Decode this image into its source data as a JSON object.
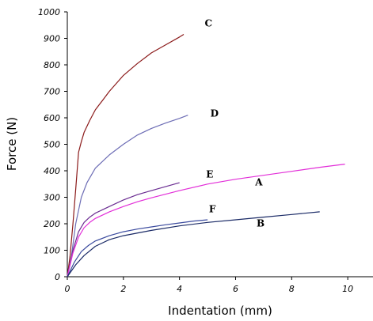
{
  "chart_data": {
    "type": "line",
    "title": "",
    "xlabel": "Indentation (mm)",
    "ylabel": "Force (N)",
    "xlim": [
      0,
      10.9
    ],
    "ylim": [
      0,
      1000
    ],
    "x_ticks": [
      0,
      2,
      4,
      6,
      8,
      10
    ],
    "y_ticks": [
      0,
      100,
      200,
      300,
      400,
      500,
      600,
      700,
      800,
      900,
      1000
    ],
    "grid": false,
    "legend": "none",
    "series": [
      {
        "name": "C",
        "color": "#8b1a1a",
        "x": [
          0,
          0.1,
          0.2,
          0.3,
          0.4,
          0.5,
          0.6,
          0.8,
          1.0,
          1.25,
          1.5,
          2.0,
          2.5,
          3.0,
          3.5,
          4.0,
          4.15
        ],
        "y": [
          0,
          80,
          200,
          330,
          470,
          510,
          545,
          590,
          630,
          665,
          700,
          760,
          805,
          845,
          875,
          905,
          915
        ]
      },
      {
        "name": "D",
        "color": "#6d6db5",
        "x": [
          0,
          0.15,
          0.3,
          0.5,
          0.7,
          1.0,
          1.5,
          2.0,
          2.5,
          3.0,
          3.5,
          4.0,
          4.3
        ],
        "y": [
          0,
          80,
          200,
          300,
          355,
          410,
          460,
          500,
          535,
          560,
          580,
          598,
          610
        ]
      },
      {
        "name": "E",
        "color": "#6a2c91",
        "x": [
          0,
          0.2,
          0.4,
          0.6,
          0.8,
          1.0,
          1.5,
          2.0,
          2.5,
          3.0,
          3.5,
          4.0
        ],
        "y": [
          0,
          100,
          170,
          205,
          225,
          240,
          265,
          290,
          310,
          325,
          340,
          355
        ]
      },
      {
        "name": "A",
        "color": "#e22ed8",
        "x": [
          0,
          0.2,
          0.4,
          0.6,
          0.8,
          1.0,
          1.5,
          2.0,
          2.5,
          3.0,
          4.0,
          5.0,
          6.0,
          7.0,
          8.0,
          9.0,
          9.9
        ],
        "y": [
          0,
          90,
          150,
          185,
          205,
          220,
          245,
          265,
          283,
          298,
          325,
          350,
          368,
          383,
          398,
          413,
          425
        ]
      },
      {
        "name": "F",
        "color": "#3a4a9e",
        "x": [
          0,
          0.25,
          0.5,
          0.75,
          1.0,
          1.5,
          2.0,
          2.5,
          3.0,
          3.5,
          4.0,
          4.5,
          5.0
        ],
        "y": [
          0,
          55,
          95,
          118,
          135,
          155,
          170,
          180,
          188,
          196,
          203,
          210,
          215
        ]
      },
      {
        "name": "B",
        "color": "#1a2a66",
        "x": [
          0,
          0.3,
          0.6,
          1.0,
          1.5,
          2.0,
          3.0,
          4.0,
          5.0,
          6.0,
          7.0,
          8.0,
          9.0
        ],
        "y": [
          0,
          45,
          80,
          115,
          140,
          155,
          175,
          192,
          205,
          215,
          225,
          235,
          245
        ]
      }
    ],
    "annotations": [
      {
        "text": "C",
        "x": 4.9,
        "y": 945
      },
      {
        "text": "D",
        "x": 5.1,
        "y": 605
      },
      {
        "text": "E",
        "x": 4.95,
        "y": 375
      },
      {
        "text": "A",
        "x": 6.7,
        "y": 345
      },
      {
        "text": "F",
        "x": 5.05,
        "y": 243
      },
      {
        "text": "B",
        "x": 6.75,
        "y": 190
      }
    ]
  }
}
